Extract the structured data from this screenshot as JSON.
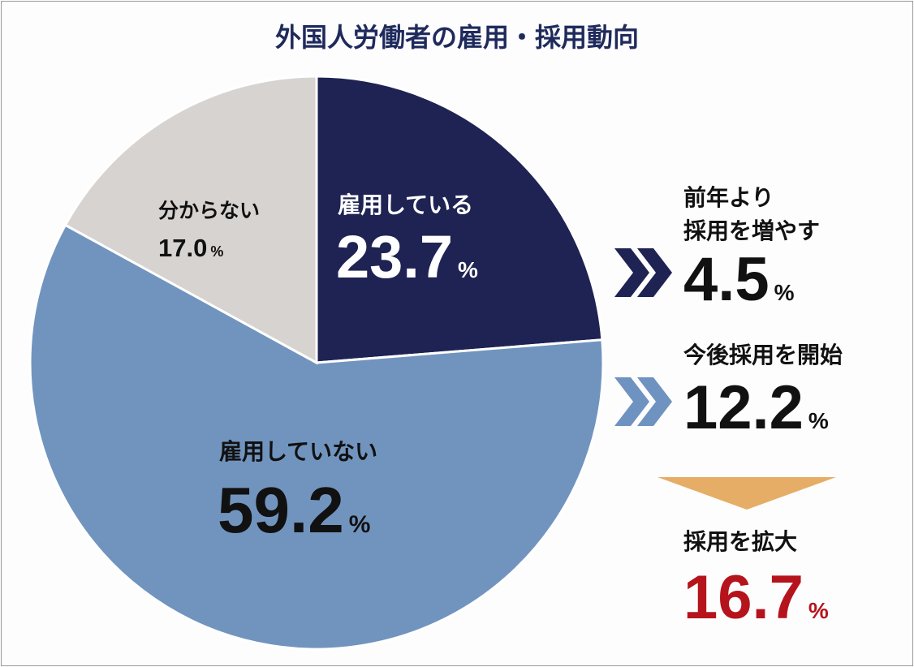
{
  "chart_data": {
    "type": "pie",
    "title": "外国人労働者の雇用・採用動向",
    "start": "top",
    "direction": "clockwise",
    "slices": [
      {
        "label": "雇用している",
        "value": 23.7,
        "display": "23.7",
        "color": "#1e2353"
      },
      {
        "label": "雇用していない",
        "value": 59.2,
        "display": "59.2",
        "color": "#7194bf"
      },
      {
        "label": "分からない",
        "value": 17.0,
        "display": "17.0",
        "color": "#d7d3d0"
      }
    ],
    "unit": "%",
    "annotations": [
      {
        "label_lines": [
          "前年より",
          "採用を増やす"
        ],
        "display": "4.5",
        "color": "#111111",
        "chevron_color": "#1e2353"
      },
      {
        "label_lines": [
          "今後採用を開始"
        ],
        "display": "12.2",
        "color": "#111111",
        "chevron_color": "#6f93c0"
      },
      {
        "label_lines": [
          "採用を拡大"
        ],
        "display": "16.7",
        "color": "#b5141c",
        "arrow_color": "#e6ad66"
      }
    ]
  }
}
